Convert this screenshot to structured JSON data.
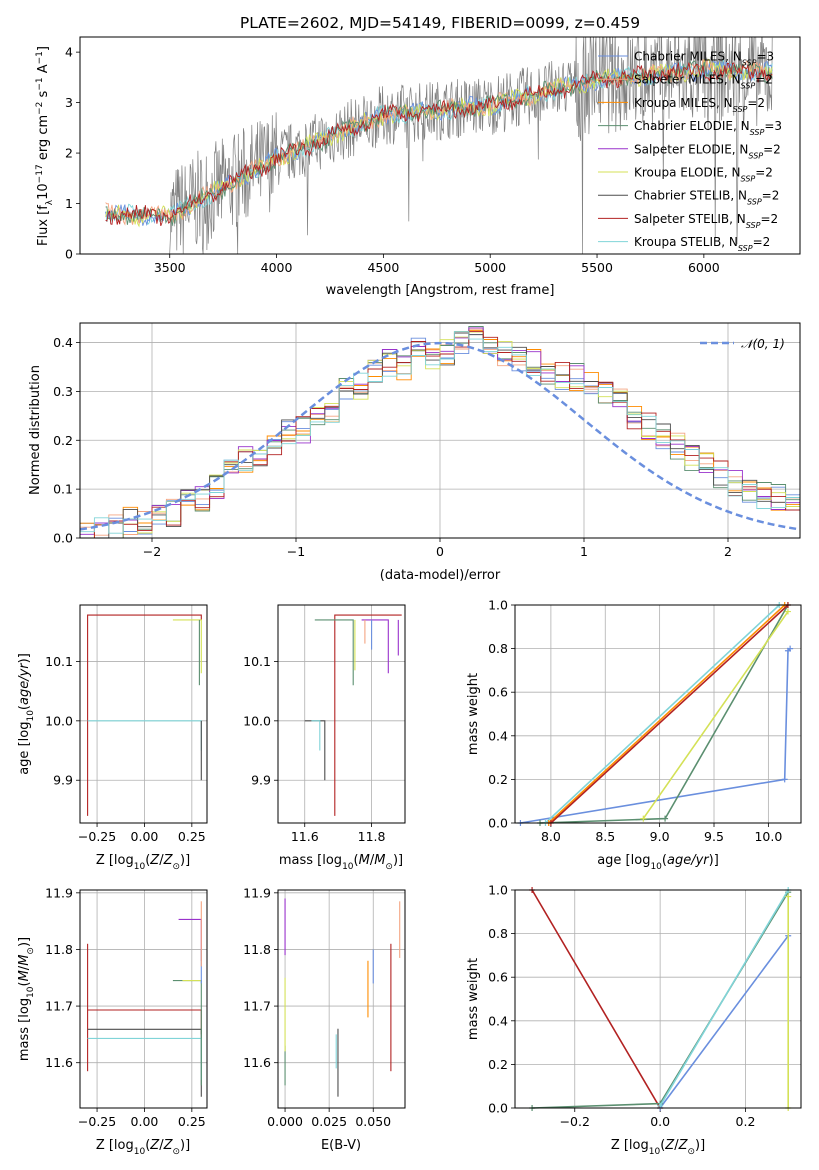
{
  "figure": {
    "title": "PLATE=2602, MJD=54149, FIBERID=0099, z=0.459",
    "series_colors": [
      "#4169e1",
      "#ff7f50",
      "#ff8c00",
      "#2e8b57",
      "#9932cc",
      "#d4e157",
      "#4d4d4d",
      "#b22222",
      "#80d4d8"
    ]
  },
  "chart_data": [
    {
      "id": "spectrum",
      "type": "line",
      "xlabel": "wavelength [Angstrom, rest frame]",
      "ylabel": "Flux [f_λ 10^-17 erg cm^-2 s^-1 A^-1]",
      "xlim": [
        3080,
        6450
      ],
      "ylim": [
        0,
        4.3
      ],
      "xticks": [
        3500,
        4000,
        4500,
        5000,
        5500,
        6000
      ],
      "yticks": [
        0,
        1,
        2,
        3,
        4
      ],
      "grid": false,
      "legend_position": "top-right",
      "legend": [
        "Chabrier MILES, N_SSP=3",
        "Salpeter MILES, N_SSP=2",
        "Kroupa MILES, N_SSP=2",
        "Chabrier ELODIE, N_SSP=3",
        "Salpeter ELODIE, N_SSP=2",
        "Kroupa ELODIE, N_SSP=2",
        "Chabrier STELIB, N_SSP=2",
        "Salpeter STELIB, N_SSP=2",
        "Kroupa STELIB, N_SSP=2"
      ],
      "model_trend": {
        "x": [
          3200,
          3500,
          4000,
          4500,
          5000,
          5500,
          6000,
          6300
        ],
        "y": [
          0.8,
          0.75,
          1.9,
          2.75,
          2.95,
          3.45,
          3.65,
          3.6
        ]
      }
    },
    {
      "id": "residuals",
      "type": "area",
      "xlabel": "(data-model)/error",
      "ylabel": "Normed distribution",
      "xlim": [
        -2.5,
        2.5
      ],
      "ylim": [
        0,
        0.44
      ],
      "xticks": [
        -2,
        -1,
        0,
        1,
        2
      ],
      "yticks": [
        0.0,
        0.1,
        0.2,
        0.3,
        0.4
      ],
      "grid": true,
      "legend_position": "top-right",
      "legend": [
        "N(0,1)"
      ],
      "normal_curve": {
        "mean": 0,
        "sigma": 1
      },
      "histogram_bins": [
        -2.5,
        -2.4,
        -2.3,
        -2.2,
        -2.1,
        -2.0,
        -1.9,
        -1.8,
        -1.7,
        -1.6,
        -1.5,
        -1.4,
        -1.3,
        -1.2,
        -1.1,
        -1.0,
        -0.9,
        -0.8,
        -0.7,
        -0.6,
        -0.5,
        -0.4,
        -0.3,
        -0.2,
        -0.1,
        0.0,
        0.1,
        0.2,
        0.3,
        0.4,
        0.5,
        0.6,
        0.7,
        0.8,
        0.9,
        1.0,
        1.1,
        1.2,
        1.3,
        1.4,
        1.5,
        1.6,
        1.7,
        1.8,
        1.9,
        2.0,
        2.1,
        2.2,
        2.3,
        2.4
      ],
      "histogram_values": [
        0.01,
        0.015,
        0.02,
        0.035,
        0.03,
        0.04,
        0.05,
        0.07,
        0.08,
        0.1,
        0.13,
        0.16,
        0.17,
        0.19,
        0.22,
        0.22,
        0.25,
        0.26,
        0.3,
        0.31,
        0.34,
        0.36,
        0.35,
        0.38,
        0.37,
        0.38,
        0.4,
        0.41,
        0.39,
        0.38,
        0.37,
        0.36,
        0.34,
        0.33,
        0.33,
        0.31,
        0.29,
        0.28,
        0.25,
        0.23,
        0.21,
        0.19,
        0.16,
        0.15,
        0.13,
        0.11,
        0.1,
        0.09,
        0.08,
        0.07
      ]
    },
    {
      "id": "age-vs-Z",
      "type": "line",
      "xlabel": "Z [log10(Z/Z⊙)]",
      "ylabel": "age [log10(age/yr)]",
      "xlim": [
        -0.34,
        0.33
      ],
      "ylim": [
        9.828,
        10.195
      ],
      "xticks": [
        -0.25,
        0.0,
        0.25
      ],
      "yticks": [
        9.9,
        10.0,
        10.1
      ],
      "grid": true
    },
    {
      "id": "age-vs-mass",
      "type": "line",
      "xlabel": "mass [log10(M/M⊙)]",
      "ylabel": "",
      "xlim": [
        11.52,
        11.9
      ],
      "ylim": [
        9.828,
        10.195
      ],
      "xticks": [
        11.6,
        11.8
      ],
      "yticks": [
        9.9,
        10.0,
        10.1
      ],
      "grid": true
    },
    {
      "id": "massweight-vs-age",
      "type": "line",
      "xlabel": "age [log10(age/yr)]",
      "ylabel": "mass weight",
      "xlim": [
        7.67,
        10.3
      ],
      "ylim": [
        0,
        1
      ],
      "xticks": [
        8.0,
        8.5,
        9.0,
        9.5,
        10.0
      ],
      "yticks": [
        0.0,
        0.2,
        0.4,
        0.6,
        0.8,
        1.0
      ],
      "grid": true,
      "series": [
        {
          "color": "#6a8fde",
          "x": [
            7.72,
            10.15,
            10.18,
            10.2
          ],
          "y": [
            0.0,
            0.2,
            0.79,
            0.8
          ]
        },
        {
          "color": "#5b8f70",
          "x": [
            7.9,
            9.05,
            10.18
          ],
          "y": [
            0.0,
            0.02,
            1.0
          ]
        },
        {
          "color": "#d4e157",
          "x": [
            8.85,
            10.18
          ],
          "y": [
            0.02,
            0.97
          ]
        },
        {
          "color": "#80d4d8",
          "x": [
            7.95,
            10.1
          ],
          "y": [
            0.0,
            1.0
          ]
        },
        {
          "color": "#ff8c00",
          "x": [
            7.98,
            10.15
          ],
          "y": [
            0.0,
            1.0
          ]
        },
        {
          "color": "#b22222",
          "x": [
            8.0,
            10.18
          ],
          "y": [
            0.0,
            1.0
          ]
        }
      ]
    },
    {
      "id": "mass-vs-Z",
      "type": "line",
      "xlabel": "Z [log10(Z/Z⊙)]",
      "ylabel": "mass [log10(M/M⊙)]",
      "xlim": [
        -0.34,
        0.33
      ],
      "ylim": [
        11.52,
        11.905
      ],
      "xticks": [
        -0.25,
        0.0,
        0.25
      ],
      "yticks": [
        11.6,
        11.7,
        11.8,
        11.9
      ],
      "grid": true
    },
    {
      "id": "mass-vs-EBV",
      "type": "line",
      "xlabel": "E(B-V)",
      "ylabel": "",
      "xlim": [
        -0.004,
        0.068
      ],
      "ylim": [
        11.52,
        11.905
      ],
      "xticks": [
        0.0,
        0.025,
        0.05
      ],
      "yticks": [
        11.6,
        11.7,
        11.8,
        11.9
      ],
      "grid": true
    },
    {
      "id": "massweight-vs-Z",
      "type": "line",
      "xlabel": "Z [log10(Z/Z⊙)]",
      "ylabel": "mass weight",
      "xlim": [
        -0.34,
        0.33
      ],
      "ylim": [
        0,
        1
      ],
      "xticks": [
        -0.2,
        0.0,
        0.2
      ],
      "yticks": [
        0.0,
        0.2,
        0.4,
        0.6,
        0.8,
        1.0
      ],
      "grid": true,
      "series": [
        {
          "color": "#b22222",
          "x": [
            -0.3,
            0.0
          ],
          "y": [
            1.0,
            0.0
          ]
        },
        {
          "color": "#6a8fde",
          "x": [
            0.0,
            0.3
          ],
          "y": [
            0.0,
            0.79
          ]
        },
        {
          "color": "#5b8f70",
          "x": [
            -0.3,
            0.0,
            0.3
          ],
          "y": [
            0.0,
            0.02,
            0.99
          ]
        },
        {
          "color": "#d4e157",
          "x": [
            0.3,
            0.3
          ],
          "y": [
            0.0,
            0.97
          ]
        },
        {
          "color": "#80d4d8",
          "x": [
            0.0,
            0.3
          ],
          "y": [
            0.01,
            1.0
          ]
        }
      ]
    }
  ]
}
